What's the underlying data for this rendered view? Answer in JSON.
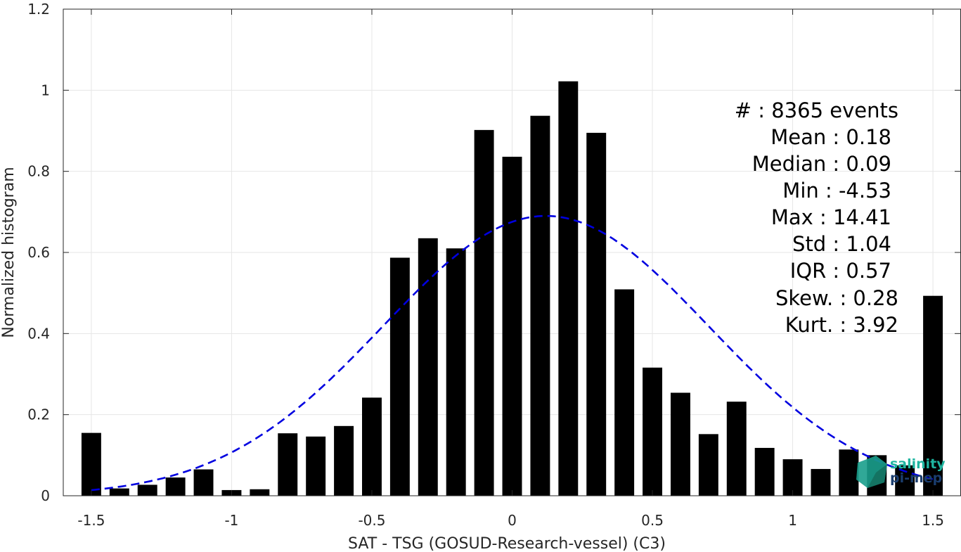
{
  "chart_data": {
    "type": "bar",
    "xlabel": "SAT - TSG (GOSUD-Research-vessel) (C3)",
    "ylabel": "Normalized histogram",
    "xlim": [
      -1.6,
      1.6
    ],
    "ylim": [
      0,
      1.2
    ],
    "xticks": [
      -1.5,
      -1,
      -0.5,
      0,
      0.5,
      1,
      1.5
    ],
    "xtick_labels": [
      "-1.5",
      "-1",
      "-0.5",
      "0",
      "0.5",
      "1",
      "1.5"
    ],
    "yticks": [
      0,
      0.2,
      0.4,
      0.6,
      0.8,
      1,
      1.2
    ],
    "ytick_labels": [
      "0",
      "0.2",
      "0.4",
      "0.6",
      "0.8",
      "1",
      "1.2"
    ],
    "grid": true,
    "bar_color": "#000000",
    "bin_width": 0.1,
    "x": [
      -1.5,
      -1.4,
      -1.3,
      -1.2,
      -1.1,
      -1.0,
      -0.9,
      -0.8,
      -0.7,
      -0.6,
      -0.5,
      -0.4,
      -0.3,
      -0.2,
      -0.1,
      0.0,
      0.1,
      0.2,
      0.3,
      0.4,
      0.5,
      0.6,
      0.7,
      0.8,
      0.9,
      1.0,
      1.1,
      1.2,
      1.3,
      1.4,
      1.5
    ],
    "values": [
      0.155,
      0.018,
      0.027,
      0.045,
      0.065,
      0.014,
      0.016,
      0.154,
      0.146,
      0.172,
      0.242,
      0.587,
      0.635,
      0.61,
      0.902,
      0.836,
      0.937,
      1.022,
      0.895,
      0.509,
      0.316,
      0.254,
      0.152,
      0.232,
      0.118,
      0.09,
      0.066,
      0.114,
      0.1,
      0.075,
      0.493
    ],
    "fit": {
      "type": "gaussian",
      "mean": 0.12,
      "peak": 0.69,
      "sigma": 0.58,
      "color": "#0000e0",
      "style": "dashed",
      "x_range": [
        -1.5,
        1.5
      ]
    }
  },
  "stats": {
    "events": "#  : 8365 events",
    "mean": "Mean : 0.18",
    "median": "Median : 0.09",
    "min": "Min : -4.53",
    "max": "Max : 14.41",
    "std": "Std : 1.04",
    "iqr": "IQR : 0.57",
    "skew": "Skew. : 0.28",
    "kurt": "Kurt. : 3.92"
  },
  "logo": {
    "line1": "salinity",
    "line2": "pi-mep",
    "color1": "#1fb5a0",
    "color2": "#1a3d6e"
  }
}
